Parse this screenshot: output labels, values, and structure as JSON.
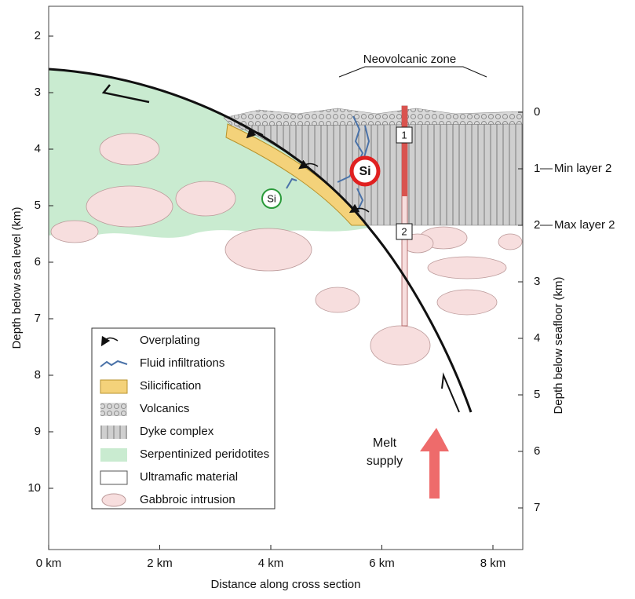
{
  "axes": {
    "left": {
      "label": "Depth below sea level (km)",
      "ticks": [
        2,
        3,
        4,
        5,
        6,
        7,
        8,
        9,
        10
      ]
    },
    "right": {
      "label": "Depth below seafloor (km)",
      "ticks": [
        0,
        1,
        2,
        3,
        4,
        5,
        6,
        7
      ]
    },
    "bottom": {
      "label": "Distance along cross section",
      "ticks": [
        "0 km",
        "2 km",
        "4 km",
        "6 km",
        "8 km"
      ]
    }
  },
  "annotations": {
    "neovolcanic": "Neovolcanic zone",
    "min_layer": "Min layer 2",
    "max_layer": "Max layer 2",
    "melt": [
      "Melt",
      "supply"
    ],
    "si_large": "Si",
    "si_small": "Si",
    "box1": "1",
    "box2": "2"
  },
  "legend": [
    "Overplating",
    "Fluid infiltrations",
    "Silicification",
    "Volcanics",
    "Dyke complex",
    "Serpentinized peridotites",
    "Ultramafic material",
    "Gabbroic intrusion"
  ]
}
